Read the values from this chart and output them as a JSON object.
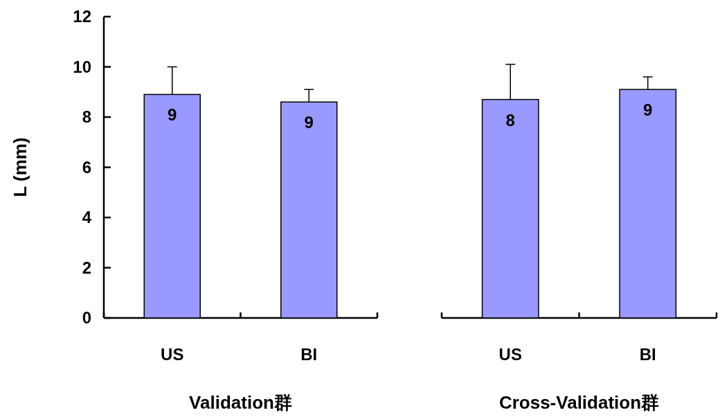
{
  "chart_data": [
    {
      "type": "bar",
      "xlabel": "Validation群",
      "ylabel": "L (mm)",
      "categories": [
        "US",
        "BI"
      ],
      "values": [
        8.9,
        8.6
      ],
      "color": "#9999ff",
      "errors": [
        [
          8.9,
          10.0
        ],
        [
          8.6,
          9.1
        ]
      ],
      "annotations": [
        {
          "text": "9",
          "x": "US",
          "y": 8.9
        },
        {
          "text": "9",
          "x": "BI",
          "y": 8.6
        }
      ],
      "ylim": [
        0,
        12
      ],
      "yticks": [
        0,
        2,
        4,
        6,
        8,
        10,
        12
      ]
    },
    {
      "type": "bar",
      "xlabel": "Cross-Validation群",
      "categories": [
        "US",
        "BI"
      ],
      "values": [
        8.7,
        9.1
      ],
      "color": "#9999ff",
      "errors": [
        [
          8.7,
          10.1
        ],
        [
          9.1,
          9.6
        ]
      ],
      "annotations": [
        {
          "text": "8",
          "x": "US",
          "y": 8.7
        },
        {
          "text": "9",
          "x": "BI",
          "y": 9.1
        }
      ],
      "ylim": [
        0,
        12
      ],
      "tick_labels": "x"
    }
  ]
}
